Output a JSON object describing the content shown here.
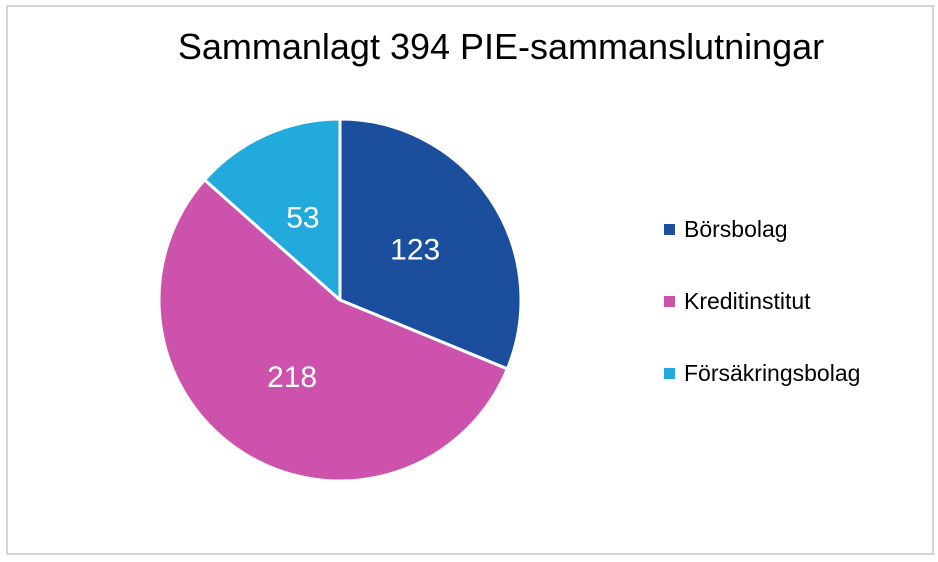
{
  "title": "Sammanlagt 394 PIE-sammanslutningar",
  "frame": {
    "border_color": "#D5D5D5",
    "background": "#FFFFFF"
  },
  "chart_data": {
    "type": "pie",
    "title": "Sammanlagt 394 PIE-sammanslutningar",
    "total": 394,
    "categories": [
      "Börsbolag",
      "Kreditinstitut",
      "Försäkringsbolag"
    ],
    "values": [
      123,
      218,
      53
    ],
    "data_labels": [
      "123",
      "218",
      "53"
    ],
    "colors": [
      "#1B4F9D",
      "#CC52AC",
      "#22AADD"
    ],
    "separator_color": "#FFFFFF",
    "start_angle_deg": 0,
    "direction": "clockwise",
    "legend_position": "right",
    "label_text_color": "#FFFFFF"
  },
  "legend": {
    "items": [
      {
        "label": "Börsbolag",
        "color": "#1B4F9D"
      },
      {
        "label": "Kreditinstitut",
        "color": "#CC52AC"
      },
      {
        "label": "Försäkringsbolag",
        "color": "#22AADD"
      }
    ]
  }
}
